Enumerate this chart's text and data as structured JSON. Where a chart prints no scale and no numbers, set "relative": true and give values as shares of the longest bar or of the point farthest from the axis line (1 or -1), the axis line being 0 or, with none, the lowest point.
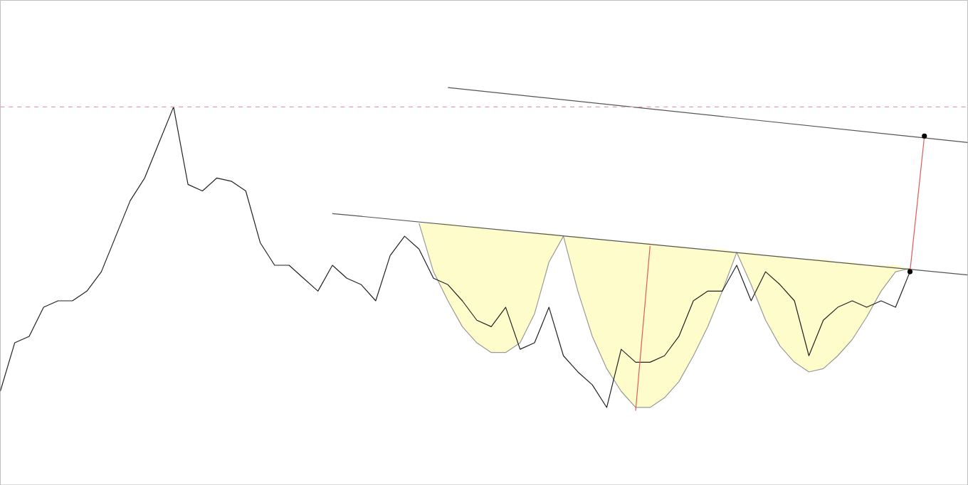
{
  "chart_data": {
    "type": "line",
    "relative": true,
    "categories": [
      null,
      null,
      null,
      null,
      null,
      null,
      null,
      null,
      null,
      null,
      null,
      null,
      null,
      null,
      null,
      null,
      null,
      null,
      null,
      null,
      null,
      null,
      null,
      null,
      null,
      null,
      null,
      null,
      null,
      null,
      null,
      null,
      null,
      null,
      null,
      null,
      null,
      null,
      null,
      null,
      null,
      null,
      null,
      null,
      null,
      null,
      null,
      null,
      null,
      null,
      null,
      null,
      null,
      null,
      null,
      null,
      null,
      null,
      null,
      null,
      null,
      null,
      null,
      null,
      null,
      null,
      null,
      null
    ],
    "ref_lines": [
      {
        "axis": "y",
        "value": 0.94,
        "color": "#e0a0a8",
        "line_style": "dashed"
      }
    ],
    "series": [
      {
        "color": "#222222",
        "values": [
          0.06,
          0.21,
          0.23,
          0.32,
          0.34,
          0.34,
          0.37,
          0.43,
          0.54,
          0.65,
          0.72,
          0.83,
          0.94,
          0.7,
          0.68,
          0.72,
          0.71,
          0.68,
          0.52,
          0.45,
          0.45,
          0.41,
          0.37,
          0.45,
          0.41,
          0.39,
          0.34,
          0.48,
          0.54,
          0.5,
          0.41,
          0.39,
          0.34,
          0.28,
          0.26,
          0.32,
          0.19,
          0.21,
          0.32,
          0.17,
          0.12,
          0.08,
          0.01,
          0.19,
          0.15,
          0.15,
          0.17,
          0.23,
          0.34,
          0.37,
          0.37,
          0.45,
          0.34,
          0.43,
          0.39,
          0.34,
          0.17,
          0.28,
          0.32,
          0.34,
          0.32,
          0.34,
          0.32,
          0.43,
          null,
          null,
          null,
          null
        ]
      },
      {
        "color": "#999999",
        "values": [
          null,
          null,
          null,
          null,
          null,
          null,
          null,
          null,
          null,
          null,
          null,
          null,
          null,
          null,
          null,
          null,
          null,
          null,
          null,
          null,
          null,
          null,
          null,
          null,
          null,
          null,
          null,
          null,
          null,
          0.58,
          0.43,
          0.34,
          0.26,
          0.21,
          0.18,
          0.18,
          0.21,
          0.3,
          0.46,
          0.54,
          0.37,
          0.23,
          0.13,
          0.06,
          0.01,
          0.01,
          0.04,
          0.09,
          0.17,
          0.26,
          0.37,
          0.49,
          0.39,
          0.28,
          0.2,
          0.15,
          0.12,
          0.13,
          0.17,
          0.22,
          0.29,
          0.37,
          0.43,
          0.44,
          null,
          null,
          null,
          null
        ],
        "lower": [
          null,
          null,
          null,
          null,
          null,
          null,
          null,
          null,
          null,
          null,
          null,
          null,
          null,
          null,
          null,
          null,
          null,
          null,
          null,
          null,
          null,
          null,
          null,
          null,
          null,
          null,
          null,
          null,
          null,
          0.58,
          0.43,
          0.34,
          0.26,
          0.21,
          0.18,
          0.18,
          0.21,
          0.3,
          0.46,
          0.54,
          0.37,
          0.23,
          0.13,
          0.06,
          0.01,
          0.01,
          0.04,
          0.09,
          0.17,
          0.26,
          0.37,
          0.49,
          0.39,
          0.28,
          0.2,
          0.15,
          0.12,
          0.13,
          0.17,
          0.22,
          0.29,
          0.37,
          0.43,
          0.44,
          null,
          null,
          null,
          null
        ],
        "upper": [
          null,
          null,
          null,
          null,
          null,
          null,
          null,
          null,
          null,
          null,
          null,
          null,
          null,
          null,
          null,
          null,
          null,
          null,
          null,
          null,
          null,
          null,
          null,
          null,
          null,
          null,
          null,
          null,
          null,
          0.58,
          0.58,
          0.58,
          0.57,
          0.57,
          0.56,
          0.56,
          0.55,
          0.55,
          0.55,
          0.54,
          0.54,
          0.53,
          0.53,
          0.52,
          0.52,
          0.52,
          0.51,
          0.51,
          0.5,
          0.5,
          0.5,
          0.49,
          0.49,
          0.48,
          0.48,
          0.47,
          0.47,
          0.47,
          0.46,
          0.46,
          0.45,
          0.45,
          0.45,
          0.44,
          null,
          null,
          null,
          null
        ]
      },
      {
        "color": "#555555",
        "values": [
          null,
          null,
          null,
          null,
          null,
          null,
          null,
          null,
          null,
          null,
          null,
          null,
          null,
          null,
          null,
          null,
          null,
          null,
          null,
          null,
          null,
          null,
          null,
          0.61,
          null,
          null,
          null,
          null,
          null,
          null,
          null,
          null,
          null,
          null,
          null,
          null,
          null,
          null,
          null,
          null,
          null,
          null,
          null,
          null,
          null,
          null,
          null,
          null,
          null,
          null,
          null,
          null,
          null,
          null,
          null,
          null,
          null,
          null,
          null,
          null,
          null,
          null,
          null,
          null,
          null,
          null,
          null,
          0.42
        ]
      },
      {
        "color": "#555555",
        "values": [
          null,
          null,
          null,
          null,
          null,
          null,
          null,
          null,
          null,
          null,
          null,
          null,
          null,
          null,
          null,
          null,
          null,
          null,
          null,
          null,
          null,
          null,
          null,
          null,
          null,
          null,
          null,
          null,
          null,
          null,
          null,
          1.0,
          null,
          null,
          null,
          null,
          null,
          null,
          null,
          null,
          null,
          null,
          null,
          null,
          null,
          null,
          null,
          null,
          null,
          null,
          null,
          null,
          null,
          null,
          null,
          null,
          null,
          null,
          null,
          null,
          null,
          null,
          null,
          null,
          null,
          null,
          null,
          0.83
        ]
      },
      {
        "color": "#e05a5a",
        "values": [
          null,
          null,
          null,
          null,
          null,
          null,
          null,
          null,
          null,
          null,
          null,
          null,
          null,
          null,
          null,
          null,
          null,
          null,
          null,
          null,
          null,
          null,
          null,
          null,
          null,
          null,
          null,
          null,
          null,
          null,
          null,
          null,
          null,
          null,
          null,
          null,
          null,
          null,
          null,
          null,
          null,
          null,
          null,
          null,
          0.0,
          0.51,
          null,
          null,
          null,
          null,
          null,
          null,
          null,
          null,
          null,
          null,
          null,
          null,
          null,
          null,
          null,
          null,
          null,
          null,
          null,
          null,
          null,
          null
        ]
      },
      {
        "color": "#e05a5a",
        "marker": "circle",
        "values": [
          null,
          null,
          null,
          null,
          null,
          null,
          null,
          null,
          null,
          null,
          null,
          null,
          null,
          null,
          null,
          null,
          null,
          null,
          null,
          null,
          null,
          null,
          null,
          null,
          null,
          null,
          null,
          null,
          null,
          null,
          null,
          null,
          null,
          null,
          null,
          null,
          null,
          null,
          null,
          null,
          null,
          null,
          null,
          null,
          null,
          null,
          null,
          null,
          null,
          null,
          null,
          null,
          null,
          null,
          null,
          null,
          null,
          null,
          null,
          null,
          null,
          null,
          null,
          0.43,
          0.85,
          null,
          null,
          null
        ]
      }
    ]
  }
}
